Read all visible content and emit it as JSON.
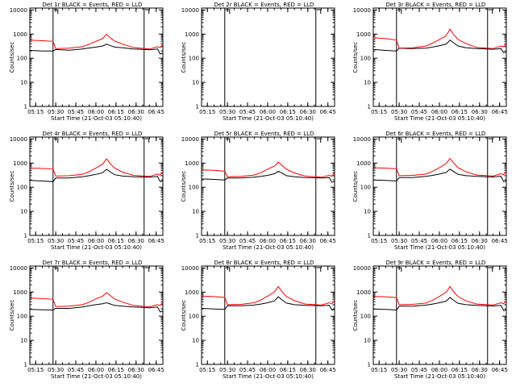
{
  "figure": {
    "title_template": "{det} BLACK = Events, RED = LLD",
    "xlabel": "Start Time (21-Oct-03 05:10:40)",
    "ylabel": "Counts/sec",
    "colors": {
      "events": "#000000",
      "lld": "#ff0000",
      "marker": "#000000"
    }
  },
  "chart_data": [
    {
      "type": "line",
      "title": "Det 1r BLACK = Events, RED = LLD",
      "xlabel": "Start Time (21-Oct-03 05:10:40)",
      "ylabel": "Counts/sec",
      "yscale": "log",
      "ylim": [
        1,
        12000
      ],
      "xlim": [
        "05:10:40",
        "06:50:00"
      ],
      "x_ticks": [
        "05:15",
        "05:30",
        "05:45",
        "06:00",
        "06:15",
        "06:30",
        "06:45"
      ],
      "y_ticks": [
        "1",
        "10",
        "100",
        "1000",
        "10000"
      ],
      "markers_x": [
        "05:28",
        "06:36"
      ],
      "x": [
        "05:11",
        "05:20",
        "05:28",
        "05:30",
        "05:40",
        "05:50",
        "05:55",
        "06:00",
        "06:05",
        "06:08",
        "06:11",
        "06:14",
        "06:20",
        "06:28",
        "06:36",
        "06:40",
        "06:46",
        "06:48",
        "06:50"
      ],
      "series": [
        {
          "name": "BLACK = Events",
          "values": [
            210,
            200,
            200,
            230,
            215,
            240,
            265,
            290,
            320,
            380,
            330,
            290,
            270,
            240,
            230,
            225,
            240,
            150,
            160
          ]
        },
        {
          "name": "RED = LLD",
          "values": [
            560,
            530,
            500,
            250,
            260,
            300,
            380,
            500,
            650,
            1000,
            680,
            520,
            380,
            280,
            250,
            240,
            300,
            280,
            390
          ]
        }
      ]
    },
    {
      "type": "line",
      "title": "Det 2r BLACK = Events, RED = LLD",
      "xlabel": "Start Time (21-Oct-03 05:10:40)",
      "ylabel": "Counts/sec",
      "yscale": "log",
      "ylim": [
        1,
        12000
      ],
      "xlim": [
        "05:10:40",
        "06:50:00"
      ],
      "x_ticks": [
        "05:15",
        "05:30",
        "05:45",
        "06:00",
        "06:15",
        "06:30",
        "06:45"
      ],
      "y_ticks": [
        "1",
        "10",
        "100",
        "1000",
        "10000"
      ],
      "markers_x": [
        "05:28",
        "06:36"
      ],
      "x": [],
      "series": []
    },
    {
      "type": "line",
      "title": "Det 3r BLACK = Events, RED = LLD",
      "xlabel": "Start Time (21-Oct-03 05:10:40)",
      "ylabel": "Counts/sec",
      "yscale": "log",
      "ylim": [
        1,
        12000
      ],
      "xlim": [
        "05:10:40",
        "06:50:00"
      ],
      "x_ticks": [
        "05:15",
        "05:30",
        "05:45",
        "06:00",
        "06:15",
        "06:30",
        "06:45"
      ],
      "y_ticks": [
        "1",
        "10",
        "100",
        "1000",
        "10000"
      ],
      "markers_x": [
        "05:28",
        "06:36"
      ],
      "x": [
        "05:11",
        "05:20",
        "05:28",
        "05:30",
        "05:40",
        "05:50",
        "05:55",
        "06:00",
        "06:05",
        "06:08",
        "06:11",
        "06:14",
        "06:20",
        "06:28",
        "06:36",
        "06:40",
        "06:46",
        "06:48",
        "06:50"
      ],
      "series": [
        {
          "name": "BLACK = Events",
          "values": [
            230,
            210,
            200,
            260,
            250,
            260,
            290,
            330,
            380,
            560,
            420,
            320,
            270,
            250,
            240,
            235,
            250,
            170,
            180
          ]
        },
        {
          "name": "RED = LLD",
          "values": [
            700,
            650,
            560,
            260,
            270,
            320,
            420,
            600,
            850,
            1600,
            900,
            600,
            400,
            280,
            260,
            250,
            320,
            300,
            420
          ]
        }
      ]
    },
    {
      "type": "line",
      "title": "Det 4r BLACK = Events, RED = LLD",
      "xlabel": "Start Time (21-Oct-03 05:10:40)",
      "ylabel": "Counts/sec",
      "yscale": "log",
      "ylim": [
        1,
        12000
      ],
      "xlim": [
        "05:10:40",
        "06:50:00"
      ],
      "x_ticks": [
        "05:15",
        "05:30",
        "05:45",
        "06:00",
        "06:15",
        "06:30",
        "06:45"
      ],
      "y_ticks": [
        "1",
        "10",
        "100",
        "1000",
        "10000"
      ],
      "markers_x": [
        "05:28",
        "06:36"
      ],
      "x": [
        "05:11",
        "05:20",
        "05:28",
        "05:30",
        "05:40",
        "05:50",
        "05:55",
        "06:00",
        "06:05",
        "06:08",
        "06:11",
        "06:14",
        "06:20",
        "06:28",
        "06:36",
        "06:40",
        "06:46",
        "06:48",
        "06:50"
      ],
      "series": [
        {
          "name": "BLACK = Events",
          "values": [
            190,
            180,
            170,
            240,
            240,
            270,
            300,
            340,
            400,
            550,
            420,
            330,
            290,
            270,
            265,
            260,
            280,
            170,
            180
          ]
        },
        {
          "name": "RED = LLD",
          "values": [
            620,
            600,
            560,
            290,
            300,
            340,
            440,
            620,
            900,
            1500,
            900,
            620,
            420,
            310,
            290,
            280,
            350,
            320,
            440
          ]
        }
      ]
    },
    {
      "type": "line",
      "title": "Det 5r BLACK = Events, RED = LLD",
      "xlabel": "Start Time (21-Oct-03 05:10:40)",
      "ylabel": "Counts/sec",
      "yscale": "log",
      "ylim": [
        1,
        12000
      ],
      "xlim": [
        "05:10:40",
        "06:50:00"
      ],
      "x_ticks": [
        "05:15",
        "05:30",
        "05:45",
        "06:00",
        "06:15",
        "06:30",
        "06:45"
      ],
      "y_ticks": [
        "1",
        "10",
        "100",
        "1000",
        "10000"
      ],
      "markers_x": [
        "05:28",
        "06:36"
      ],
      "x": [
        "05:11",
        "05:20",
        "05:28",
        "05:30",
        "05:40",
        "05:50",
        "05:55",
        "06:00",
        "06:05",
        "06:08",
        "06:11",
        "06:14",
        "06:20",
        "06:28",
        "06:36",
        "06:40",
        "06:46",
        "06:48",
        "06:50"
      ],
      "series": [
        {
          "name": "BLACK = Events",
          "values": [
            220,
            210,
            200,
            240,
            240,
            260,
            280,
            310,
            360,
            460,
            380,
            300,
            270,
            250,
            245,
            240,
            250,
            160,
            170
          ]
        },
        {
          "name": "RED = LLD",
          "values": [
            520,
            500,
            460,
            270,
            280,
            320,
            400,
            560,
            750,
            1100,
            780,
            560,
            390,
            290,
            270,
            260,
            310,
            290,
            400
          ]
        }
      ]
    },
    {
      "type": "line",
      "title": "Det 6r BLACK = Events, RED = LLD",
      "xlabel": "Start Time (21-Oct-03 05:10:40)",
      "ylabel": "Counts/sec",
      "yscale": "log",
      "ylim": [
        1,
        12000
      ],
      "xlim": [
        "05:10:40",
        "06:50:00"
      ],
      "x_ticks": [
        "05:15",
        "05:30",
        "05:45",
        "06:00",
        "06:15",
        "06:30",
        "06:45"
      ],
      "y_ticks": [
        "1",
        "10",
        "100",
        "1000",
        "10000"
      ],
      "markers_x": [
        "05:28",
        "06:36"
      ],
      "x": [
        "05:11",
        "05:20",
        "05:28",
        "05:30",
        "05:40",
        "05:50",
        "05:55",
        "06:00",
        "06:05",
        "06:08",
        "06:11",
        "06:14",
        "06:20",
        "06:28",
        "06:36",
        "06:40",
        "06:46",
        "06:48",
        "06:50"
      ],
      "series": [
        {
          "name": "BLACK = Events",
          "values": [
            200,
            190,
            180,
            250,
            250,
            280,
            310,
            350,
            410,
            560,
            430,
            340,
            300,
            280,
            270,
            265,
            285,
            170,
            180
          ]
        },
        {
          "name": "RED = LLD",
          "values": [
            640,
            620,
            580,
            300,
            310,
            350,
            450,
            640,
            950,
            1550,
            950,
            640,
            430,
            320,
            300,
            290,
            360,
            330,
            450
          ]
        }
      ]
    },
    {
      "type": "line",
      "title": "Det 7r BLACK = Events, RED = LLD",
      "xlabel": "Start Time (21-Oct-03 05:10:40)",
      "ylabel": "Counts/sec",
      "yscale": "log",
      "ylim": [
        1,
        12000
      ],
      "xlim": [
        "05:10:40",
        "06:50:00"
      ],
      "x_ticks": [
        "05:15",
        "05:30",
        "05:45",
        "06:00",
        "06:15",
        "06:30",
        "06:45"
      ],
      "y_ticks": [
        "1",
        "10",
        "100",
        "1000",
        "10000"
      ],
      "markers_x": [
        "05:28",
        "06:36"
      ],
      "x": [
        "05:11",
        "05:20",
        "05:28",
        "05:30",
        "05:40",
        "05:50",
        "05:55",
        "06:00",
        "06:05",
        "06:08",
        "06:11",
        "06:14",
        "06:20",
        "06:28",
        "06:36",
        "06:40",
        "06:46",
        "06:48",
        "06:50"
      ],
      "series": [
        {
          "name": "BLACK = Events",
          "values": [
            190,
            185,
            180,
            210,
            210,
            240,
            270,
            300,
            330,
            360,
            320,
            280,
            260,
            240,
            230,
            225,
            240,
            150,
            160
          ]
        },
        {
          "name": "RED = LLD",
          "values": [
            560,
            540,
            500,
            250,
            260,
            300,
            380,
            520,
            680,
            950,
            700,
            520,
            380,
            280,
            255,
            245,
            300,
            280,
            380
          ]
        }
      ]
    },
    {
      "type": "line",
      "title": "Det 8r BLACK = Events, RED = LLD",
      "xlabel": "Start Time (21-Oct-03 05:10:40)",
      "ylabel": "Counts/sec",
      "yscale": "log",
      "ylim": [
        1,
        12000
      ],
      "xlim": [
        "05:10:40",
        "06:50:00"
      ],
      "x_ticks": [
        "05:15",
        "05:30",
        "05:45",
        "06:00",
        "06:15",
        "06:30",
        "06:45"
      ],
      "y_ticks": [
        "1",
        "10",
        "100",
        "1000",
        "10000"
      ],
      "markers_x": [
        "05:28",
        "06:36"
      ],
      "x": [
        "05:11",
        "05:20",
        "05:28",
        "05:30",
        "05:40",
        "05:50",
        "05:55",
        "06:00",
        "06:05",
        "06:08",
        "06:11",
        "06:14",
        "06:20",
        "06:28",
        "06:36",
        "06:40",
        "06:46",
        "06:48",
        "06:50"
      ],
      "series": [
        {
          "name": "BLACK = Events",
          "values": [
            210,
            200,
            190,
            270,
            270,
            290,
            320,
            360,
            430,
            640,
            460,
            350,
            300,
            280,
            275,
            270,
            285,
            180,
            190
          ]
        },
        {
          "name": "RED = LLD",
          "values": [
            680,
            650,
            600,
            300,
            310,
            360,
            470,
            680,
            1000,
            1700,
            1000,
            660,
            440,
            320,
            300,
            290,
            360,
            330,
            460
          ]
        }
      ]
    },
    {
      "type": "line",
      "title": "Det 9r BLACK = Events, RED = LLD",
      "xlabel": "Start Time (21-Oct-03 05:10:40)",
      "ylabel": "Counts/sec",
      "yscale": "log",
      "ylim": [
        1,
        12000
      ],
      "xlim": [
        "05:10:40",
        "06:50:00"
      ],
      "x_ticks": [
        "05:15",
        "05:30",
        "05:45",
        "06:00",
        "06:15",
        "06:30",
        "06:45"
      ],
      "y_ticks": [
        "1",
        "10",
        "100",
        "1000",
        "10000"
      ],
      "markers_x": [
        "05:28",
        "06:36"
      ],
      "x": [
        "05:11",
        "05:20",
        "05:28",
        "05:30",
        "05:40",
        "05:50",
        "05:55",
        "06:00",
        "06:05",
        "06:08",
        "06:11",
        "06:14",
        "06:20",
        "06:28",
        "06:36",
        "06:40",
        "06:46",
        "06:48",
        "06:50"
      ],
      "series": [
        {
          "name": "BLACK = Events",
          "values": [
            200,
            190,
            180,
            260,
            260,
            290,
            320,
            360,
            420,
            600,
            440,
            340,
            300,
            280,
            270,
            265,
            280,
            170,
            180
          ]
        },
        {
          "name": "RED = LLD",
          "values": [
            660,
            640,
            590,
            300,
            310,
            350,
            460,
            660,
            980,
            1700,
            980,
            650,
            430,
            320,
            300,
            290,
            360,
            330,
            450
          ]
        }
      ]
    }
  ]
}
